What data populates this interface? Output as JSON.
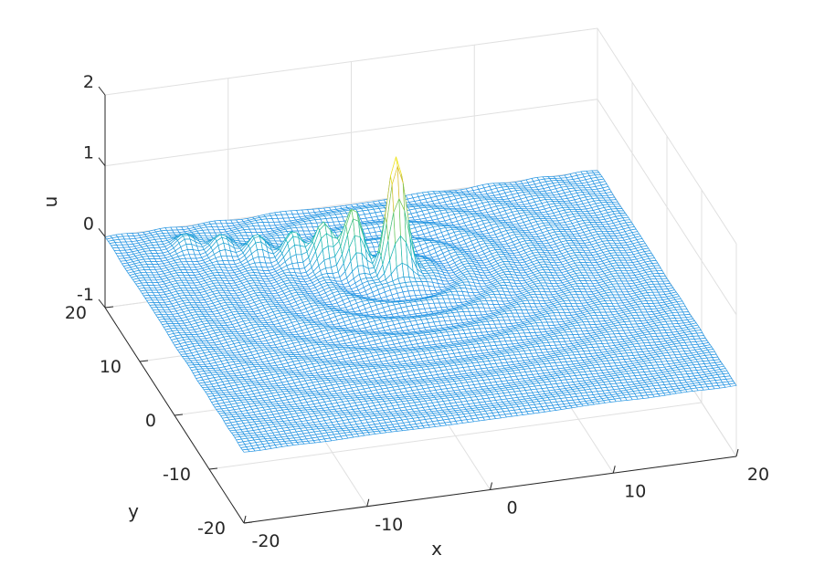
{
  "chart_data": {
    "type": "surface-mesh",
    "title": "",
    "xlabel": "x",
    "ylabel": "y",
    "zlabel": "u",
    "xlim": [
      -20,
      20
    ],
    "ylim": [
      -20,
      20
    ],
    "zlim": [
      -1,
      2
    ],
    "x_ticks": [
      "-20",
      "-10",
      "0",
      "10",
      "20"
    ],
    "y_ticks": [
      "-20",
      "-10",
      "0",
      "10",
      "20"
    ],
    "z_ticks": [
      "-1",
      "0",
      "1",
      "2"
    ],
    "grid": true,
    "colormap": "parula",
    "colormap_stops": [
      "#3e26a8",
      "#2d8cf0",
      "#18b8b8",
      "#5fc95f",
      "#d8ba2f",
      "#f9fb15"
    ],
    "surface_base_color": "#2d8cf0",
    "features": {
      "main_peak": {
        "x": 0,
        "y": 7,
        "height": 1.6
      },
      "trailing_humps": [
        {
          "x": -3,
          "y": 9,
          "height": 0.85
        },
        {
          "x": -5,
          "y": 10.5,
          "height": 0.55
        },
        {
          "x": -7,
          "y": 12,
          "height": 0.35
        },
        {
          "x": -9.5,
          "y": 13.5,
          "height": 0.25
        },
        {
          "x": -12,
          "y": 15,
          "height": 0.2
        },
        {
          "x": -14.5,
          "y": 16.5,
          "height": 0.15
        }
      ]
    }
  }
}
